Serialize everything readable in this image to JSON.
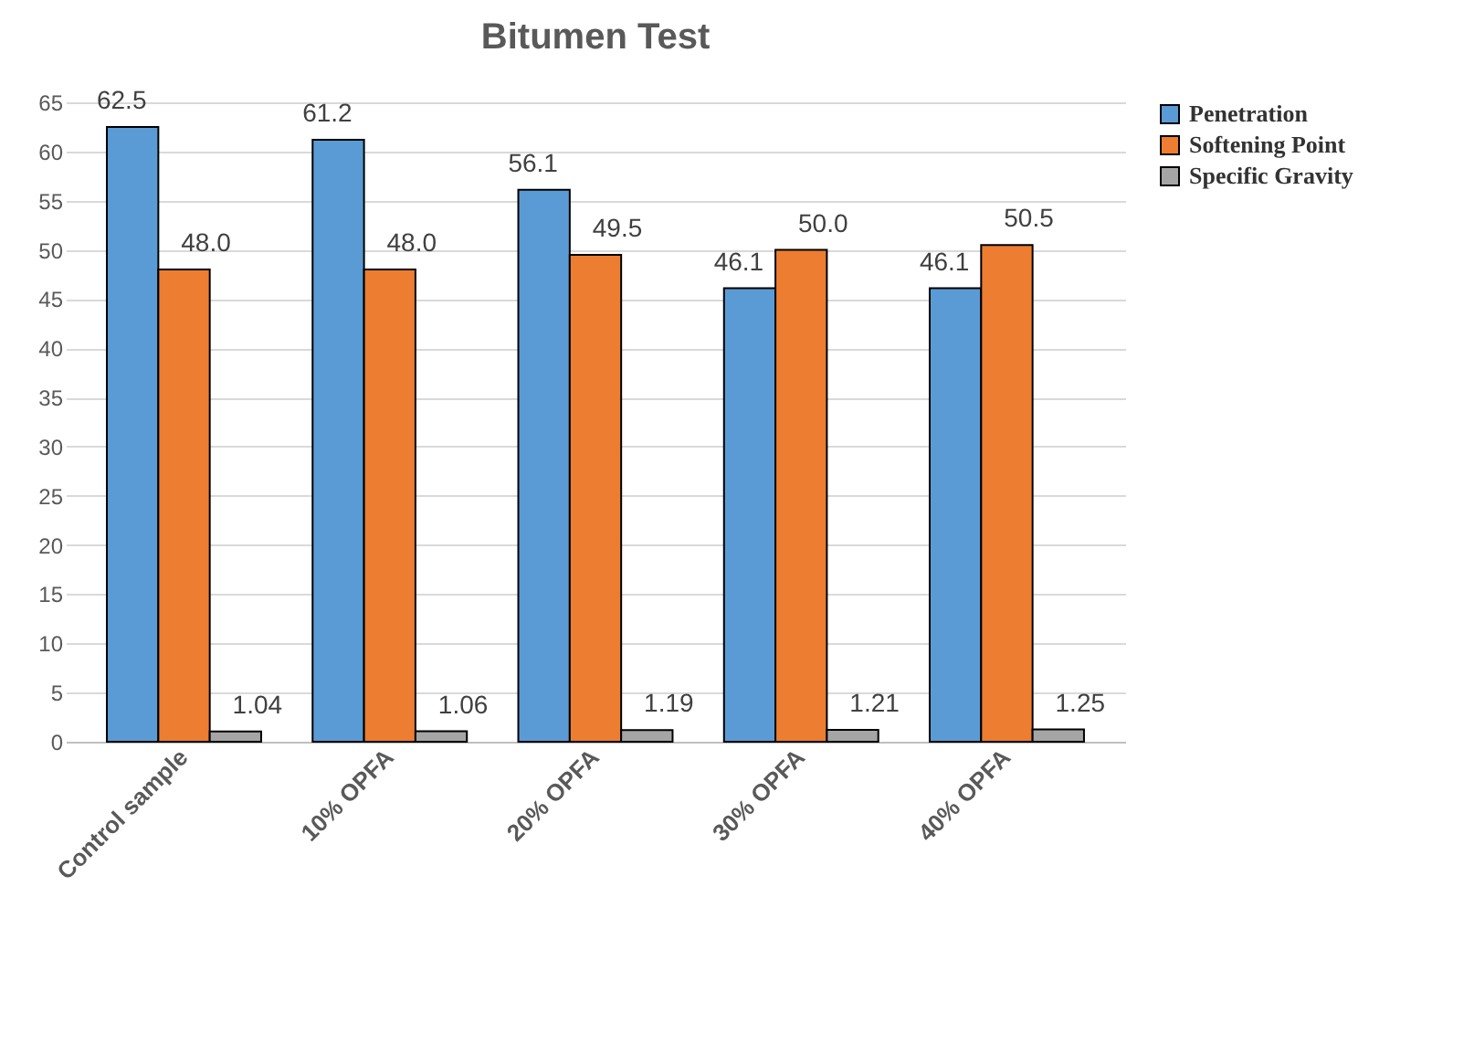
{
  "chart_data": {
    "type": "bar",
    "title": "Bitumen Test",
    "categories": [
      "Control sample",
      "10% OPFA",
      "20% OPFA",
      "30% OPFA",
      "40% OPFA"
    ],
    "series": [
      {
        "name": "Penetration",
        "color": "#5b9bd5",
        "values": [
          62.5,
          61.2,
          56.1,
          46.1,
          46.1
        ],
        "value_labels": [
          "62.5",
          "61.2",
          "56.1",
          "46.1",
          "46.1"
        ]
      },
      {
        "name": "Softening Point",
        "color": "#ed7d31",
        "values": [
          48.0,
          48.0,
          49.5,
          50.0,
          50.5
        ],
        "value_labels": [
          "48.0",
          "48.0",
          "49.5",
          "50.0",
          "50.5"
        ]
      },
      {
        "name": "Specific Gravity",
        "color": "#a5a5a5",
        "values": [
          1.04,
          1.06,
          1.19,
          1.21,
          1.25
        ],
        "value_labels": [
          "1.04",
          "1.06",
          "1.19",
          "1.21",
          "1.25"
        ]
      }
    ],
    "ylim": [
      0,
      65
    ],
    "yticks": [
      0,
      5,
      10,
      15,
      20,
      25,
      30,
      35,
      40,
      45,
      50,
      55,
      60,
      65
    ],
    "grid": "y",
    "legend": "right"
  }
}
